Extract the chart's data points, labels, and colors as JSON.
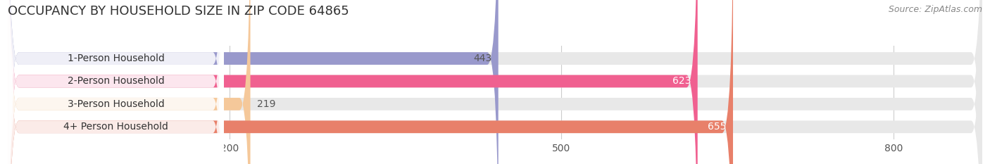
{
  "title": "OCCUPANCY BY HOUSEHOLD SIZE IN ZIP CODE 64865",
  "source": "Source: ZipAtlas.com",
  "categories": [
    "1-Person Household",
    "2-Person Household",
    "3-Person Household",
    "4+ Person Household"
  ],
  "values": [
    443,
    623,
    219,
    655
  ],
  "bar_colors": [
    "#9999cc",
    "#f06090",
    "#f5c89a",
    "#e8806a"
  ],
  "bg_color": "#ffffff",
  "bar_bg_color": "#e8e8e8",
  "xlim_data": 880,
  "xticks": [
    200,
    500,
    800
  ],
  "label_colors_inside": [
    "#555555",
    "#ffffff",
    "#555555",
    "#ffffff"
  ],
  "title_fontsize": 13,
  "source_fontsize": 9,
  "tick_fontsize": 10,
  "bar_label_fontsize": 10,
  "category_fontsize": 10
}
